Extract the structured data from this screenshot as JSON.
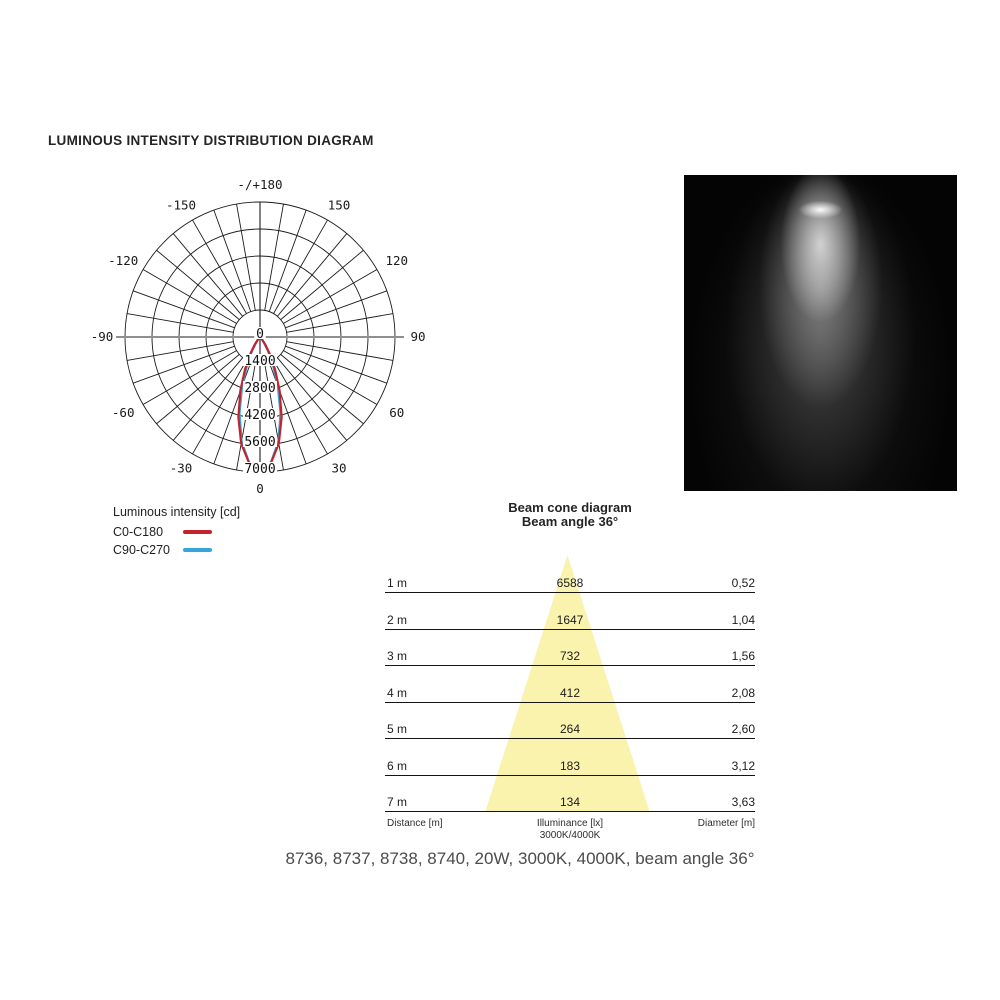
{
  "page": {
    "title": "LUMINOUS INTENSITY DISTRIBUTION DIAGRAM",
    "caption": "8736, 8737, 8738, 8740, 20W, 3000K, 4000K, beam angle 36°"
  },
  "polar": {
    "legend_title": "Luminous intensity [cd]",
    "legend": [
      {
        "label": "C0-C180",
        "color": "#c4232b"
      },
      {
        "label": "C90-C270",
        "color": "#35a6d9"
      }
    ]
  },
  "beam_cone": {
    "title_line1": "Beam cone diagram",
    "title_line2": "Beam angle 36°",
    "rows": [
      {
        "distance": "1 m",
        "illuminance": "6588",
        "diameter": "0,52"
      },
      {
        "distance": "2 m",
        "illuminance": "1647",
        "diameter": "1,04"
      },
      {
        "distance": "3 m",
        "illuminance": "732",
        "diameter": "1,56"
      },
      {
        "distance": "4 m",
        "illuminance": "412",
        "diameter": "2,08"
      },
      {
        "distance": "5 m",
        "illuminance": "264",
        "diameter": "2,60"
      },
      {
        "distance": "6 m",
        "illuminance": "183",
        "diameter": "3,12"
      },
      {
        "distance": "7 m",
        "illuminance": "134",
        "diameter": "3,63"
      }
    ],
    "footer_distance": "Distance [m]",
    "footer_illuminance_1": "Illuminance [lx]",
    "footer_illuminance_2": "3000K/4000K",
    "footer_diameter": "Diameter [m]"
  },
  "chart_data": [
    {
      "type": "line",
      "subtype": "polar",
      "title": "Luminous intensity distribution diagram",
      "units": "cd",
      "rlim": [
        0,
        7000
      ],
      "radial_ticks_cd": [
        0,
        1400,
        2800,
        4200,
        5600,
        7000
      ],
      "spoke_step_deg": 10,
      "angle_ticks": [
        {
          "deg": 180,
          "label": "-/+180"
        },
        {
          "deg": 150,
          "label": "150"
        },
        {
          "deg": 120,
          "label": "120"
        },
        {
          "deg": 90,
          "label": "90"
        },
        {
          "deg": 60,
          "label": "60"
        },
        {
          "deg": 30,
          "label": "30"
        },
        {
          "deg": 0,
          "label": "0"
        },
        {
          "deg": -30,
          "label": "-30"
        },
        {
          "deg": -60,
          "label": "-60"
        },
        {
          "deg": -90,
          "label": "-90"
        },
        {
          "deg": -120,
          "label": "-120"
        },
        {
          "deg": -150,
          "label": "-150"
        }
      ],
      "series": [
        {
          "name": "C0-C180",
          "color": "#c4232b",
          "points": [
            [
              -55,
              4
            ],
            [
              -50,
              17
            ],
            [
              -45,
              64
            ],
            [
              -40,
              188
            ],
            [
              -35,
              466
            ],
            [
              -30,
              990
            ],
            [
              -25,
              1829
            ],
            [
              -20,
              2981
            ],
            [
              -15,
              4320
            ],
            [
              -10,
              5612
            ],
            [
              -5,
              6554
            ],
            [
              0,
              6900
            ],
            [
              5,
              6554
            ],
            [
              10,
              5612
            ],
            [
              15,
              4320
            ],
            [
              20,
              2981
            ],
            [
              25,
              1829
            ],
            [
              30,
              990
            ],
            [
              35,
              466
            ],
            [
              40,
              188
            ],
            [
              45,
              64
            ],
            [
              50,
              17
            ],
            [
              55,
              4
            ]
          ]
        },
        {
          "name": "C90-C270",
          "color": "#35a6d9",
          "points": [
            [
              -55,
              2
            ],
            [
              -50,
              9
            ],
            [
              -45,
              40
            ],
            [
              -40,
              120
            ],
            [
              -35,
              345
            ],
            [
              -30,
              798
            ],
            [
              -25,
              1579
            ],
            [
              -20,
              2714
            ],
            [
              -15,
              4103
            ],
            [
              -10,
              5484
            ],
            [
              -5,
              6516
            ],
            [
              0,
              6900
            ],
            [
              5,
              6516
            ],
            [
              10,
              5484
            ],
            [
              15,
              4103
            ],
            [
              20,
              2714
            ],
            [
              25,
              1579
            ],
            [
              30,
              798
            ],
            [
              35,
              345
            ],
            [
              40,
              120
            ],
            [
              45,
              40
            ],
            [
              50,
              9
            ],
            [
              55,
              2
            ]
          ]
        }
      ]
    },
    {
      "type": "table",
      "title": "Beam cone diagram",
      "beam_angle_deg": 36,
      "columns": [
        "Distance [m]",
        "Illuminance [lx] 3000K/4000K",
        "Diameter [m]"
      ],
      "rows": [
        [
          "1 m",
          6588,
          "0,52"
        ],
        [
          "2 m",
          1647,
          "1,04"
        ],
        [
          "3 m",
          732,
          "1,56"
        ],
        [
          "4 m",
          412,
          "2,08"
        ],
        [
          "5 m",
          264,
          "2,60"
        ],
        [
          "6 m",
          183,
          "3,12"
        ],
        [
          "7 m",
          134,
          "3,63"
        ]
      ]
    }
  ]
}
